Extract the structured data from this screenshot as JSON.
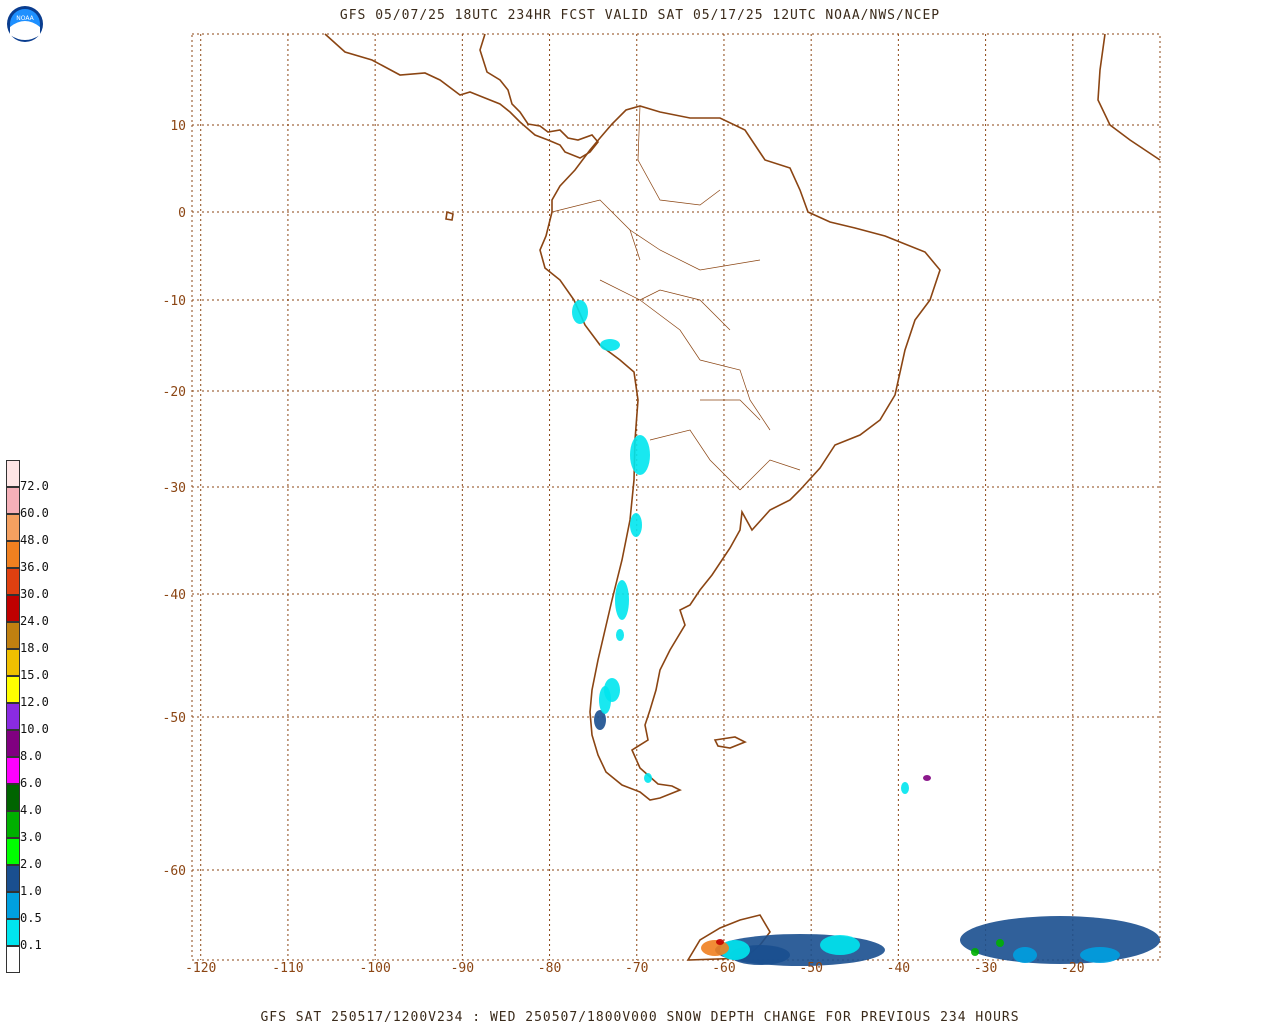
{
  "header": {
    "title": "GFS 05/07/25 18UTC 234HR FCST VALID SAT 05/17/25 12UTC NOAA/NWS/NCEP"
  },
  "footer": {
    "caption": "GFS SAT 250517/1200V234 : WED 250507/1800V000 SNOW DEPTH CHANGE FOR PREVIOUS 234 HOURS"
  },
  "logo": {
    "icon": "noaa-logo-icon",
    "text": "NOAA"
  },
  "map": {
    "region": "South America",
    "latitude_labels": [
      "10",
      "0",
      "-10",
      "-20",
      "-30",
      "-40",
      "-50",
      "-60"
    ],
    "longitude_labels": [
      "-120",
      "-110",
      "-100",
      "-90",
      "-80",
      "-70",
      "-60",
      "-50",
      "-40",
      "-30",
      "-20"
    ],
    "coast_color": "#8b4513",
    "grid_color": "#8b4513"
  },
  "legend": {
    "labels": [
      "72.0",
      "60.0",
      "48.0",
      "36.0",
      "30.0",
      "24.0",
      "18.0",
      "15.0",
      "12.0",
      "10.0",
      "8.0",
      "6.0",
      "4.0",
      "3.0",
      "2.0",
      "1.0",
      "0.5",
      "0.1"
    ],
    "colors": [
      "#ffe6e6",
      "#f5b0b8",
      "#f4a060",
      "#f08020",
      "#e04010",
      "#c00000",
      "#c08010",
      "#f0c000",
      "#ffff00",
      "#8a2be2",
      "#800080",
      "#ff00ff",
      "#006400",
      "#00b000",
      "#00ff00",
      "#1a4f8f",
      "#00a0e0",
      "#00e5ee",
      "#ffffff"
    ]
  }
}
